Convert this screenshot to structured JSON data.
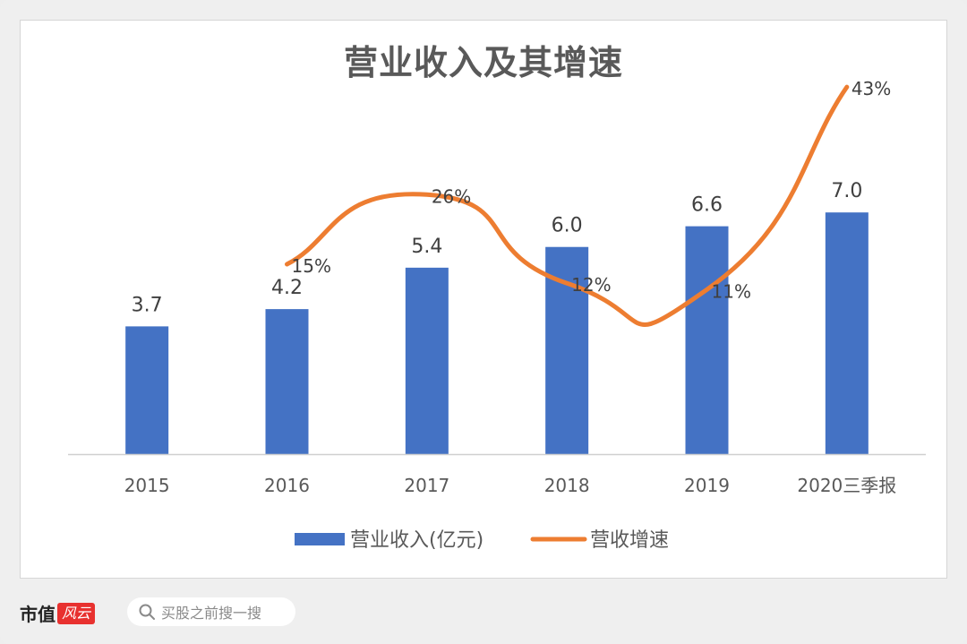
{
  "chart_data": {
    "type": "bar+line",
    "title": "营业收入及其增速",
    "categories": [
      "2015",
      "2016",
      "2017",
      "2018",
      "2019",
      "2020三季报"
    ],
    "series": [
      {
        "name": "营业收入(亿元)",
        "kind": "bar",
        "color": "#4472c4",
        "values": [
          3.7,
          4.2,
          5.4,
          6.0,
          6.6,
          7.0
        ],
        "labels": [
          "3.7",
          "4.2",
          "5.4",
          "6.0",
          "6.6",
          "7.0"
        ]
      },
      {
        "name": "营收增速",
        "kind": "line",
        "color": "#ed7d31",
        "values": [
          null,
          15,
          26,
          12,
          11,
          43
        ],
        "labels": [
          "",
          "15%",
          "26%",
          "12%",
          "11%",
          "43%"
        ]
      }
    ],
    "ylim": [
      0,
      11
    ],
    "y2lim": [
      -15,
      45
    ],
    "legend": "bottom-center",
    "grid": false
  },
  "footer": {
    "brand_name": "市值",
    "brand_seal": "风云",
    "search_placeholder": "买股之前搜一搜"
  }
}
